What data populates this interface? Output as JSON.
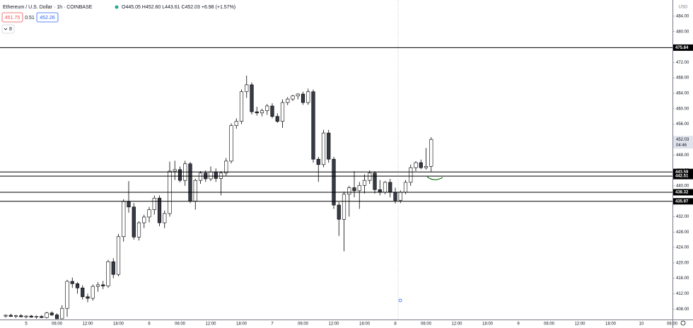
{
  "chart_data": {
    "type": "candlestick",
    "title": "Ethereum / U.S. Dollar · 1h · COINBASE",
    "ohlc_text": "O445.05 H452.60 L443.61 C452.03 +6.98 (+1.57%)",
    "sell_price": "451.75",
    "spread": "0.51",
    "buy_price": "452.26",
    "indicators_count": "8",
    "currency": "USD",
    "last_price_label": "452.03",
    "countdown": "04:46",
    "up_color": "#ffffff",
    "down_color": "#363a45",
    "line_color": "#000000",
    "categories": [
      null,
      null,
      null,
      null,
      "5",
      null,
      null,
      null,
      null,
      null,
      "06:00",
      null,
      null,
      null,
      null,
      null,
      "12:00",
      null,
      null,
      null,
      null,
      null,
      "18:00",
      null,
      null,
      null,
      null,
      null,
      "6",
      null,
      null,
      null,
      null,
      null,
      "06:00",
      null,
      null,
      null,
      null,
      null,
      "12:00",
      null,
      null,
      null,
      null,
      null,
      "18:00",
      null,
      null,
      null,
      null,
      null,
      "7",
      null,
      null,
      null,
      null,
      null,
      "06:00",
      null,
      null,
      null,
      null,
      null,
      "12:00",
      null,
      null,
      null,
      null,
      null,
      "18:00",
      null,
      null,
      null,
      null,
      null,
      "8",
      null,
      null,
      null,
      null,
      null,
      "06:00",
      null,
      null,
      null,
      null,
      null,
      "12:00",
      null,
      null,
      null,
      null,
      null,
      "18:00",
      null,
      null,
      null,
      null,
      null,
      "9",
      null,
      null,
      null,
      null,
      null,
      "06:00",
      null,
      null,
      null,
      null,
      null,
      "12:00",
      null,
      null,
      null,
      null,
      null,
      "18:00",
      null,
      null,
      null,
      null,
      null,
      "10",
      null,
      null,
      null,
      null,
      null,
      "06:00"
    ],
    "open": [
      406.2,
      406.4,
      406.1,
      406.3,
      406.0,
      406.2,
      405.9,
      406.1,
      405.8,
      407.0,
      406.5,
      405.5,
      408.2,
      415.2,
      414.6,
      413.5,
      411.2,
      410.8,
      413.9,
      414.3,
      414.0,
      420.3,
      417.0,
      426.8,
      435.9,
      434.5,
      426.7,
      430.4,
      431.9,
      433.8,
      436.8,
      430.4,
      432.8,
      443.8,
      444.2,
      441.4,
      445.7,
      436.0,
      441.4,
      443.3,
      441.8,
      443.6,
      441.9,
      443.3,
      446.4,
      455.6,
      456.7,
      464.4,
      466.2,
      459.2,
      458.9,
      459.5,
      460.7,
      458.0,
      456.7,
      461.6,
      462.5,
      463.3,
      463.8,
      461.6,
      464.4,
      446.9,
      445.5,
      453.7,
      446.9,
      435.0,
      431.3,
      437.8,
      439.5,
      438.7,
      440.1,
      441.4,
      443.3,
      439.0,
      438.3,
      440.9,
      438.3,
      436.2,
      438.3,
      440.9,
      444.7,
      446.0,
      444.7,
      445.05,
      null,
      null,
      null,
      null,
      null,
      null,
      null,
      null,
      null,
      null,
      null,
      null,
      null,
      null,
      null,
      null,
      null,
      null,
      null,
      null,
      null,
      null,
      null,
      null,
      null,
      null,
      null,
      null,
      null,
      null,
      null,
      null,
      null,
      null,
      null,
      null,
      null,
      null,
      null,
      null,
      null,
      null,
      null,
      null,
      null,
      null,
      null
    ],
    "high": [
      406.6,
      406.8,
      406.5,
      406.7,
      406.4,
      406.5,
      406.3,
      406.4,
      407.3,
      407.4,
      406.9,
      409.0,
      415.6,
      416.2,
      415.0,
      414.2,
      412.0,
      414.4,
      415.0,
      415.3,
      420.8,
      421.2,
      427.5,
      436.5,
      441.2,
      435.5,
      430.8,
      432.5,
      434.5,
      437.5,
      437.5,
      433.6,
      446.3,
      446.5,
      445.0,
      446.5,
      446.2,
      441.8,
      443.8,
      444.0,
      445.0,
      444.5,
      443.8,
      447.2,
      456.2,
      457.5,
      465.0,
      468.6,
      466.8,
      460.5,
      460.0,
      461.2,
      461.4,
      458.8,
      462.4,
      463.0,
      463.6,
      464.0,
      464.4,
      465.2,
      465.0,
      447.5,
      454.5,
      454.5,
      447.5,
      435.8,
      438.5,
      440.0,
      443.8,
      441.0,
      443.0,
      444.0,
      443.8,
      441.5,
      441.2,
      441.8,
      439.5,
      438.8,
      441.5,
      445.5,
      446.4,
      446.8,
      449.8,
      452.6,
      null,
      null,
      null,
      null,
      null,
      null,
      null,
      null,
      null,
      null,
      null,
      null,
      null,
      null,
      null,
      null,
      null,
      null,
      null,
      null,
      null,
      null,
      null,
      null,
      null,
      null,
      null,
      null,
      null,
      null,
      null,
      null,
      null,
      null,
      null,
      null,
      null,
      null,
      null,
      null,
      null,
      null,
      null,
      null,
      null,
      null,
      null
    ],
    "low": [
      405.8,
      406.0,
      405.7,
      405.9,
      405.6,
      405.8,
      405.5,
      405.7,
      405.6,
      406.2,
      405.4,
      405.4,
      406.0,
      413.5,
      412.0,
      410.5,
      409.8,
      410.2,
      412.5,
      413.2,
      413.5,
      416.0,
      416.5,
      425.5,
      433.0,
      426.0,
      425.8,
      429.0,
      430.5,
      432.5,
      429.5,
      429.0,
      432.0,
      441.5,
      440.9,
      440.0,
      435.5,
      433.8,
      440.5,
      441.0,
      441.2,
      441.0,
      437.5,
      442.5,
      445.8,
      454.8,
      456.0,
      462.8,
      458.5,
      458.2,
      458.0,
      458.4,
      457.5,
      456.3,
      455.0,
      460.9,
      462.0,
      462.4,
      461.0,
      461.0,
      446.0,
      441.0,
      444.8,
      446.0,
      434.0,
      427.0,
      423.0,
      432.0,
      437.0,
      434.0,
      438.0,
      440.5,
      438.0,
      437.5,
      437.8,
      437.0,
      435.4,
      435.5,
      437.8,
      440.0,
      443.8,
      444.3,
      444.2,
      443.61,
      null,
      null,
      null,
      null,
      null,
      null,
      null,
      null,
      null,
      null,
      null,
      null,
      null,
      null,
      null,
      null,
      null,
      null,
      null,
      null,
      null,
      null,
      null,
      null,
      null,
      null,
      null,
      null,
      null,
      null,
      null,
      null,
      null,
      null,
      null,
      null,
      null,
      null,
      null,
      null,
      null,
      null,
      null,
      null,
      null,
      null,
      null
    ],
    "close": [
      406.4,
      406.1,
      406.3,
      406.0,
      406.2,
      405.9,
      406.1,
      405.8,
      407.0,
      406.5,
      405.5,
      408.2,
      415.2,
      414.6,
      413.5,
      411.2,
      410.8,
      413.9,
      414.3,
      414.0,
      420.3,
      417.0,
      426.8,
      435.9,
      434.5,
      426.7,
      430.4,
      431.9,
      433.8,
      436.8,
      430.4,
      432.8,
      443.8,
      444.2,
      441.4,
      445.7,
      436.0,
      441.4,
      443.3,
      441.8,
      443.6,
      441.9,
      443.3,
      446.4,
      455.6,
      456.7,
      464.4,
      466.2,
      459.2,
      458.9,
      459.5,
      460.7,
      458.0,
      456.7,
      461.6,
      462.5,
      463.3,
      463.8,
      461.6,
      464.4,
      446.9,
      445.5,
      453.7,
      446.9,
      435.0,
      431.3,
      437.8,
      439.5,
      438.7,
      440.1,
      441.4,
      443.3,
      439.0,
      438.3,
      440.9,
      438.3,
      436.2,
      438.3,
      440.9,
      444.7,
      446.0,
      444.7,
      445.05,
      452.03,
      null,
      null,
      null,
      null,
      null,
      null,
      null,
      null,
      null,
      null,
      null,
      null,
      null,
      null,
      null,
      null,
      null,
      null,
      null,
      null,
      null,
      null,
      null,
      null,
      null,
      null,
      null,
      null,
      null,
      null,
      null,
      null,
      null,
      null,
      null,
      null,
      null,
      null,
      null,
      null,
      null,
      null,
      null,
      null,
      null,
      null,
      null
    ],
    "hlines": [
      475.84,
      443.59,
      442.51,
      438.32,
      435.97
    ],
    "last_price": 452.03,
    "ylim": [
      405.3,
      488.2
    ],
    "yticks": [
      {
        "value": 408,
        "label": "408.00"
      },
      {
        "value": 412,
        "label": "412.00"
      },
      {
        "value": 416,
        "label": "416.00"
      },
      {
        "value": 420,
        "label": "420.00"
      },
      {
        "value": 424,
        "label": "424.00"
      },
      {
        "value": 428,
        "label": "428.00"
      },
      {
        "value": 432,
        "label": "432.00"
      },
      {
        "value": 436,
        "label": "436.00"
      },
      {
        "value": 440,
        "label": "440.00"
      },
      {
        "value": 444,
        "label": "444.00"
      },
      {
        "value": 448,
        "label": "448.00"
      },
      {
        "value": 452,
        "label": "452.00"
      },
      {
        "value": 456,
        "label": "456.00"
      },
      {
        "value": 460,
        "label": "460.00"
      },
      {
        "value": 464,
        "label": "464.00"
      },
      {
        "value": 468,
        "label": "468.00"
      },
      {
        "value": 472,
        "label": "472.00"
      },
      {
        "value": 476,
        "label": "476.00"
      },
      {
        "value": 480,
        "label": "480.00"
      },
      {
        "value": 484,
        "label": "484.00"
      }
    ]
  }
}
